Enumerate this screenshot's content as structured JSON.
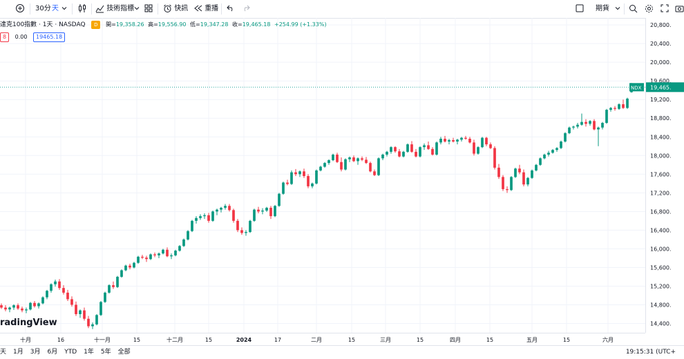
{
  "toolbar": {
    "interval_30": "30分",
    "interval_day": "天",
    "indicators": "技術指標",
    "quick_search": "快訊",
    "replay": "重播",
    "futures": "期貨"
  },
  "legend": {
    "title": "達克100指數 · 1天 · NASDAQ",
    "badge": "D",
    "open_label": "開=",
    "open": "19,358.26",
    "high_label": "高=",
    "high": "19,556.90",
    "low_label": "低=",
    "low": "19,347.28",
    "close_label": "收=",
    "close": "19,465.18",
    "change": "+254.99 (+1.33%)",
    "row2_a": "8",
    "row2_b": "0.00",
    "row2_c": "19465.18"
  },
  "price_tag": {
    "symbol": "NDX",
    "value": "19,465."
  },
  "watermark": "radingView",
  "bottom": {
    "ranges": [
      "天",
      "1月",
      "3月",
      "6月",
      "YTD",
      "1年",
      "5年",
      "全部"
    ],
    "clock": "19:15:31 (UTC+"
  },
  "colors": {
    "up": "#089981",
    "down": "#f23645",
    "accent": "#2962ff",
    "last_price_line": "#26a69a"
  },
  "chart_data": {
    "type": "candlestick",
    "y_ticks": [
      "20,800.",
      "20,400.",
      "20,000.",
      "19,600.",
      "19,200.",
      "18,800.",
      "18,400.",
      "18,000.",
      "17,600.",
      "17,200.",
      "16,800.",
      "16,400.",
      "16,000.",
      "15,600.",
      "15,200.",
      "14,800.",
      "14,400."
    ],
    "ylim": [
      14200,
      20950
    ],
    "x_labels": [
      "十月",
      "16",
      "十一月",
      "15",
      "十二月",
      "15",
      "2024",
      "17",
      "二月",
      "15",
      "三月",
      "15",
      "四月",
      "15",
      "五月",
      "15",
      "六月"
    ],
    "last_price": 19465.18,
    "candles": [
      [
        14790,
        14830,
        14710,
        14740
      ],
      [
        14740,
        14790,
        14660,
        14700
      ],
      [
        14700,
        14760,
        14640,
        14740
      ],
      [
        14740,
        14810,
        14690,
        14790
      ],
      [
        14790,
        14830,
        14690,
        14720
      ],
      [
        14720,
        14760,
        14640,
        14680
      ],
      [
        14680,
        14740,
        14620,
        14700
      ],
      [
        14700,
        14860,
        14680,
        14840
      ],
      [
        14840,
        14880,
        14740,
        14770
      ],
      [
        14770,
        14850,
        14720,
        14830
      ],
      [
        14830,
        14980,
        14810,
        14960
      ],
      [
        14960,
        15120,
        14920,
        15100
      ],
      [
        15100,
        15260,
        15060,
        15240
      ],
      [
        15240,
        15340,
        15190,
        15300
      ],
      [
        15300,
        15350,
        15120,
        15160
      ],
      [
        15160,
        15220,
        15020,
        15060
      ],
      [
        15060,
        15120,
        14880,
        14920
      ],
      [
        14920,
        14980,
        14760,
        14800
      ],
      [
        14800,
        14870,
        14560,
        14600
      ],
      [
        14600,
        14700,
        14520,
        14680
      ],
      [
        14680,
        14740,
        14460,
        14500
      ],
      [
        14500,
        14560,
        14300,
        14340
      ],
      [
        14340,
        14420,
        14280,
        14380
      ],
      [
        14380,
        14600,
        14360,
        14580
      ],
      [
        14580,
        14880,
        14560,
        14860
      ],
      [
        14860,
        15080,
        14840,
        15060
      ],
      [
        15060,
        15240,
        15040,
        15220
      ],
      [
        15220,
        15300,
        15140,
        15180
      ],
      [
        15180,
        15420,
        15160,
        15400
      ],
      [
        15400,
        15560,
        15380,
        15540
      ],
      [
        15540,
        15660,
        15520,
        15640
      ],
      [
        15640,
        15680,
        15560,
        15600
      ],
      [
        15600,
        15720,
        15580,
        15700
      ],
      [
        15700,
        15850,
        15680,
        15830
      ],
      [
        15830,
        15870,
        15780,
        15810
      ],
      [
        15810,
        15850,
        15720,
        15780
      ],
      [
        15780,
        15900,
        15760,
        15880
      ],
      [
        15880,
        15920,
        15820,
        15860
      ],
      [
        15860,
        15920,
        15800,
        15900
      ],
      [
        15900,
        16000,
        15880,
        15980
      ],
      [
        15980,
        16030,
        15820,
        15840
      ],
      [
        15840,
        15900,
        15780,
        15860
      ],
      [
        15860,
        15980,
        15840,
        15960
      ],
      [
        15960,
        16080,
        15940,
        16060
      ],
      [
        16060,
        16220,
        16040,
        16200
      ],
      [
        16200,
        16400,
        16180,
        16380
      ],
      [
        16380,
        16620,
        16360,
        16600
      ],
      [
        16600,
        16700,
        16540,
        16660
      ],
      [
        16660,
        16740,
        16620,
        16700
      ],
      [
        16700,
        16760,
        16640,
        16720
      ],
      [
        16720,
        16770,
        16560,
        16600
      ],
      [
        16600,
        16820,
        16580,
        16800
      ],
      [
        16800,
        16860,
        16720,
        16840
      ],
      [
        16840,
        16900,
        16780,
        16880
      ],
      [
        16880,
        16960,
        16840,
        16920
      ],
      [
        16920,
        16960,
        16800,
        16830
      ],
      [
        16830,
        16860,
        16560,
        16600
      ],
      [
        16600,
        16640,
        16360,
        16400
      ],
      [
        16400,
        16460,
        16300,
        16340
      ],
      [
        16340,
        16400,
        16280,
        16360
      ],
      [
        16360,
        16620,
        16340,
        16600
      ],
      [
        16600,
        16860,
        16580,
        16840
      ],
      [
        16840,
        16900,
        16760,
        16800
      ],
      [
        16800,
        16870,
        16740,
        16820
      ],
      [
        16820,
        16900,
        16790,
        16880
      ],
      [
        16880,
        16920,
        16640,
        16700
      ],
      [
        16700,
        16940,
        16680,
        16920
      ],
      [
        16920,
        17200,
        16900,
        17180
      ],
      [
        17180,
        17440,
        17160,
        17420
      ],
      [
        17420,
        17480,
        17360,
        17390
      ],
      [
        17390,
        17680,
        17370,
        17640
      ],
      [
        17640,
        17710,
        17560,
        17600
      ],
      [
        17600,
        17680,
        17540,
        17660
      ],
      [
        17660,
        17720,
        17520,
        17560
      ],
      [
        17560,
        17600,
        17300,
        17340
      ],
      [
        17340,
        17420,
        17300,
        17400
      ],
      [
        17400,
        17700,
        17380,
        17680
      ],
      [
        17680,
        17780,
        17660,
        17760
      ],
      [
        17760,
        17860,
        17740,
        17840
      ],
      [
        17840,
        17920,
        17800,
        17900
      ],
      [
        17900,
        18040,
        17880,
        18020
      ],
      [
        18020,
        18060,
        17840,
        17860
      ],
      [
        17860,
        17960,
        17660,
        17700
      ],
      [
        17700,
        17940,
        17680,
        17920
      ],
      [
        17920,
        17980,
        17860,
        17960
      ],
      [
        17960,
        18000,
        17860,
        17880
      ],
      [
        17880,
        17960,
        17800,
        17940
      ],
      [
        17940,
        17980,
        17880,
        17910
      ],
      [
        17910,
        17970,
        17820,
        17840
      ],
      [
        17840,
        17870,
        17640,
        17660
      ],
      [
        17660,
        17700,
        17560,
        17580
      ],
      [
        17580,
        17960,
        17560,
        17940
      ],
      [
        17940,
        18040,
        17900,
        18020
      ],
      [
        18020,
        18100,
        17980,
        18080
      ],
      [
        18080,
        18200,
        18040,
        18180
      ],
      [
        18180,
        18200,
        18060,
        18090
      ],
      [
        18090,
        18140,
        17960,
        17980
      ],
      [
        17980,
        18100,
        17960,
        18080
      ],
      [
        18080,
        18260,
        18060,
        18240
      ],
      [
        18240,
        18310,
        18060,
        18080
      ],
      [
        18080,
        18140,
        17960,
        17980
      ],
      [
        17980,
        18200,
        17960,
        18180
      ],
      [
        18180,
        18260,
        18120,
        18220
      ],
      [
        18220,
        18300,
        18120,
        18140
      ],
      [
        18140,
        18180,
        18000,
        18020
      ],
      [
        18020,
        18300,
        18000,
        18280
      ],
      [
        18280,
        18400,
        18240,
        18360
      ],
      [
        18360,
        18420,
        18280,
        18300
      ],
      [
        18300,
        18360,
        18240,
        18330
      ],
      [
        18330,
        18380,
        18280,
        18300
      ],
      [
        18300,
        18360,
        18240,
        18340
      ],
      [
        18340,
        18400,
        18300,
        18380
      ],
      [
        18380,
        18420,
        18340,
        18360
      ],
      [
        18360,
        18400,
        18260,
        18280
      ],
      [
        18280,
        18340,
        18000,
        18040
      ],
      [
        18040,
        18200,
        18020,
        18180
      ],
      [
        18180,
        18400,
        18160,
        18380
      ],
      [
        18380,
        18400,
        18200,
        18240
      ],
      [
        18240,
        18280,
        18140,
        18160
      ],
      [
        18160,
        18200,
        17700,
        17740
      ],
      [
        17740,
        17820,
        17500,
        17540
      ],
      [
        17540,
        17580,
        17240,
        17280
      ],
      [
        17280,
        17340,
        17200,
        17260
      ],
      [
        17260,
        17560,
        17240,
        17540
      ],
      [
        17540,
        17740,
        17520,
        17720
      ],
      [
        17720,
        17800,
        17600,
        17640
      ],
      [
        17640,
        17700,
        17340,
        17380
      ],
      [
        17380,
        17540,
        17340,
        17520
      ],
      [
        17520,
        17700,
        17500,
        17680
      ],
      [
        17680,
        17820,
        17660,
        17800
      ],
      [
        17800,
        17960,
        17780,
        17940
      ],
      [
        17940,
        18040,
        17920,
        18020
      ],
      [
        18020,
        18100,
        17980,
        18060
      ],
      [
        18060,
        18140,
        18040,
        18120
      ],
      [
        18120,
        18180,
        18080,
        18160
      ],
      [
        18160,
        18320,
        18140,
        18300
      ],
      [
        18300,
        18500,
        18280,
        18480
      ],
      [
        18480,
        18620,
        18460,
        18600
      ],
      [
        18600,
        18640,
        18560,
        18620
      ],
      [
        18620,
        18700,
        18580,
        18660
      ],
      [
        18660,
        18900,
        18640,
        18720
      ],
      [
        18720,
        18780,
        18620,
        18680
      ],
      [
        18680,
        18760,
        18640,
        18740
      ],
      [
        18740,
        18780,
        18540,
        18560
      ],
      [
        18560,
        18620,
        18200,
        18600
      ],
      [
        18600,
        18720,
        18560,
        18700
      ],
      [
        18700,
        19000,
        18680,
        18980
      ],
      [
        18980,
        19040,
        18940,
        19020
      ],
      [
        19020,
        19060,
        18960,
        19000
      ],
      [
        19000,
        19120,
        18980,
        19100
      ],
      [
        19100,
        19200,
        19000,
        19020
      ],
      [
        19020,
        19240,
        19000,
        19220
      ],
      [
        19358.26,
        19556.9,
        19347.28,
        19465.18
      ]
    ]
  }
}
